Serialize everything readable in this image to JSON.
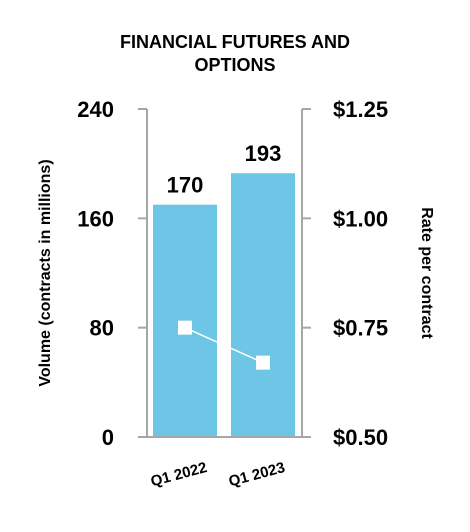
{
  "chart_data": {
    "type": "bar",
    "title": "FINANCIAL FUTURES AND OPTIONS",
    "title_lines": [
      "FINANCIAL FUTURES AND",
      "OPTIONS"
    ],
    "categories": [
      "Q1 2022",
      "Q1 2023"
    ],
    "series": [
      {
        "values": [
          170,
          193
        ],
        "axis": "left",
        "kind": "bar",
        "color": "#6ec6e6"
      },
      {
        "values": [
          0.75,
          0.67
        ],
        "axis": "right",
        "kind": "line",
        "color": "#ffffff"
      }
    ],
    "bar_labels": [
      "170",
      "193"
    ],
    "ylabel": "Volume (contracts in millions)",
    "ylabel_right": "Rate per contract",
    "ylim": [
      0,
      240
    ],
    "ylim_right": [
      0.5,
      1.25
    ],
    "left_ticks": [
      "0",
      "80",
      "160",
      "240"
    ],
    "left_tick_values": [
      0,
      80,
      160,
      240
    ],
    "right_ticks": [
      "$0.50",
      "$0.75",
      "$1.00",
      "$1.25"
    ],
    "right_tick_values": [
      0.5,
      0.75,
      1.0,
      1.25
    ],
    "grid": false,
    "axis_color": "#a6a6a6"
  }
}
